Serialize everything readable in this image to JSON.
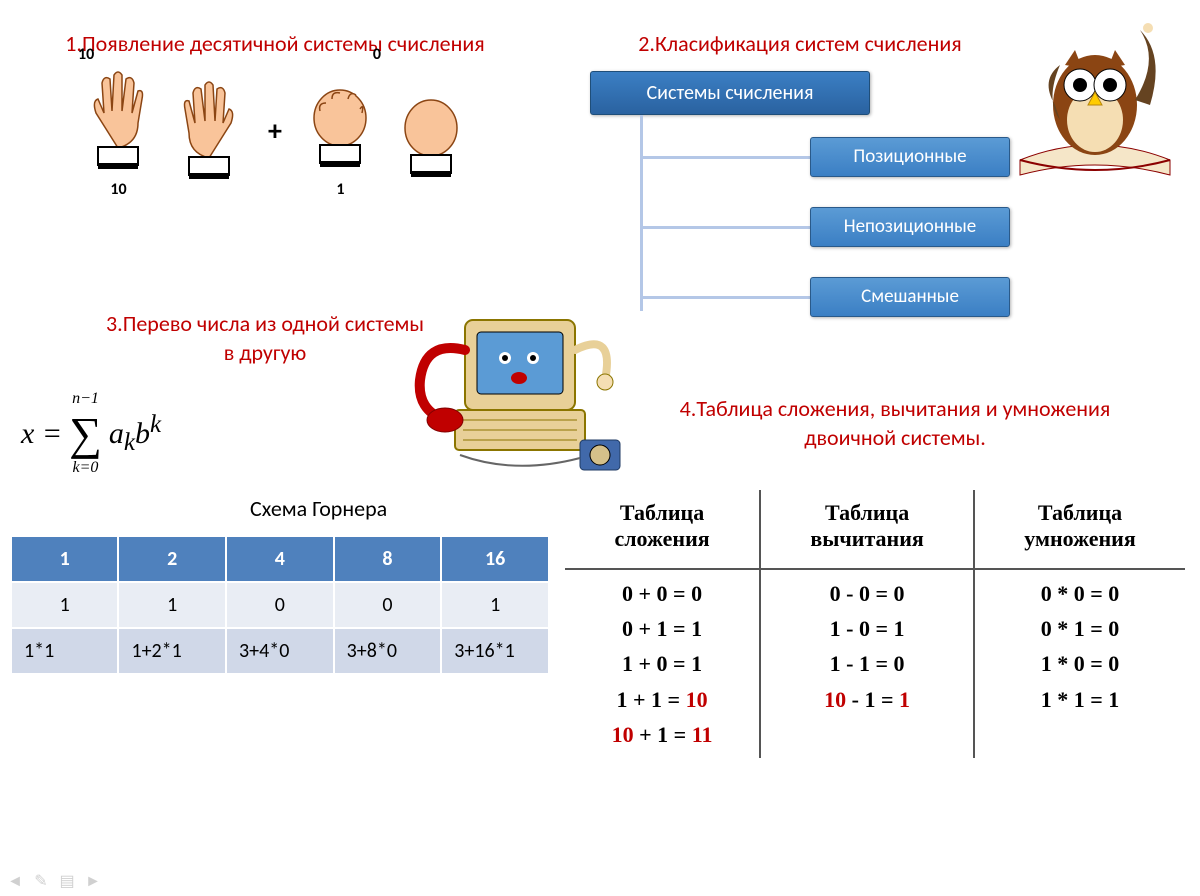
{
  "colors": {
    "title": "#c00000",
    "tree_root_bg_top": "#3b7fc4",
    "tree_root_bg_bot": "#2a62a0",
    "tree_child_bg_top": "#5b9bd5",
    "tree_child_bg_bot": "#3b7fc4",
    "tree_connector": "#b4c7e7",
    "table_header_bg": "#4f81bd",
    "table_row1_bg": "#e9edf4",
    "table_row2_bg": "#d0d8e8",
    "ops_border": "#555555",
    "highlight": "#c00000",
    "background": "#ffffff"
  },
  "sec1": {
    "title": "1.Появление десятичной системы счисления",
    "top_left": "10",
    "top_right": "0",
    "bot_left": "10",
    "bot_right": "1",
    "plus": "+"
  },
  "sec2": {
    "title": "2.Класификация систем счисления",
    "root": "Системы счисления",
    "children": [
      "Позиционные",
      "Непозиционные",
      "Смешанные"
    ]
  },
  "sec3": {
    "title": "3.Перево числа из одной системы в другую",
    "formula": {
      "lhs": "x =",
      "upper": "n−1",
      "lower": "k=0",
      "body": "a",
      "sub1": "k",
      "base": "b",
      "sup": "k"
    },
    "horner_label": "Схема Горнера",
    "horner": {
      "headers": [
        "1",
        "2",
        "4",
        "8",
        "16"
      ],
      "row1": [
        "1",
        "1",
        "0",
        "0",
        "1"
      ],
      "row2": [
        "1*1",
        "1+2*1",
        "3+4*0",
        "3+8*0",
        "3+16*1"
      ]
    }
  },
  "sec4": {
    "title": "4.Таблица сложения, вычитания и умножения двоичной системы.",
    "columns": [
      "Таблица сложения",
      "Таблица вычитания",
      "Таблица умножения"
    ],
    "add": [
      [
        {
          "t": "0 + 0 = 0"
        }
      ],
      [
        {
          "t": "0 + 1 = 1"
        }
      ],
      [
        {
          "t": "1 + 0 = 1"
        }
      ],
      [
        {
          "t": "1 + 1 = "
        },
        {
          "t": "10",
          "red": true
        }
      ],
      [
        {
          "t": "10",
          "red": true
        },
        {
          "t": " + 1 = "
        },
        {
          "t": "11",
          "red": true
        }
      ]
    ],
    "sub": [
      [
        {
          "t": "0 - 0 = 0"
        }
      ],
      [
        {
          "t": "1 - 0 = 1"
        }
      ],
      [
        {
          "t": "1 - 1 = 0"
        }
      ],
      [
        {
          "t": "10",
          "red": true
        },
        {
          "t": " - 1 = "
        },
        {
          "t": "1",
          "red": true
        }
      ]
    ],
    "mul": [
      [
        {
          "t": "0 * 0 = 0"
        }
      ],
      [
        {
          "t": "0 * 1 = 0"
        }
      ],
      [
        {
          "t": "1 * 0 = 0"
        }
      ],
      [
        {
          "t": "1 * 1 = 1"
        }
      ]
    ]
  },
  "icons": {
    "owl": "owl-mascot",
    "computer": "retro-computer-phone",
    "hand_open": "open-hand",
    "hand_fist": "closed-fist"
  }
}
